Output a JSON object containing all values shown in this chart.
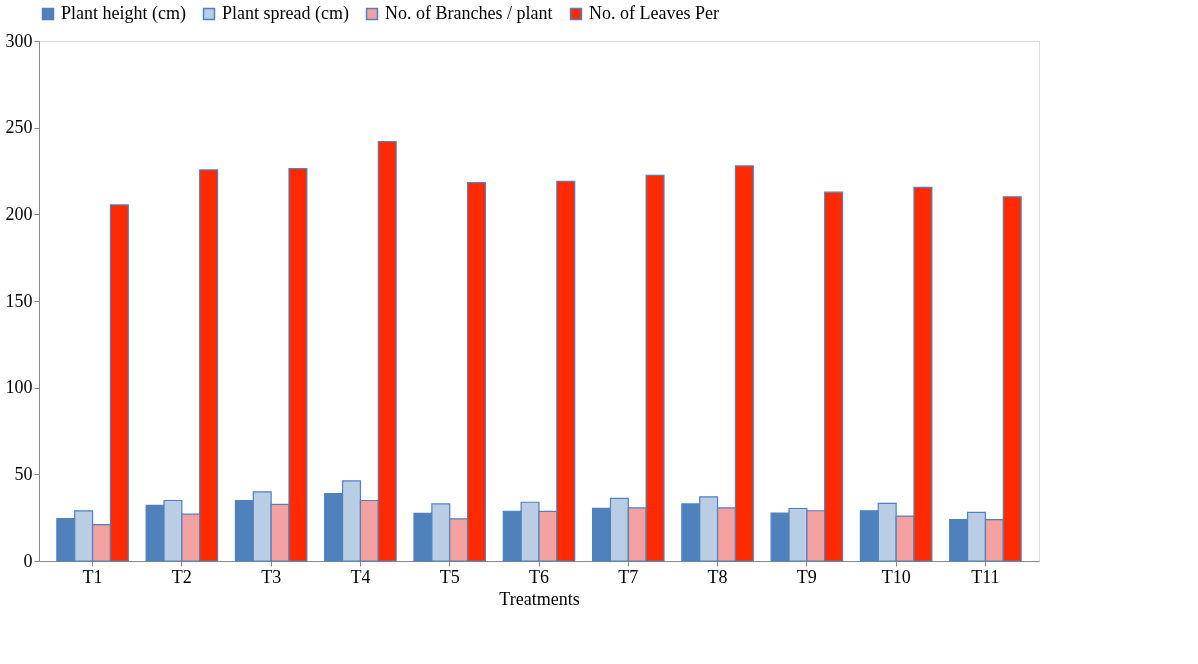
{
  "chart_data": {
    "type": "bar",
    "xlabel": "Treatments",
    "categories": [
      "T1",
      "T2",
      "T3",
      "T4",
      "T5",
      "T6",
      "T7",
      "T8",
      "T9",
      "T10",
      "T11"
    ],
    "series": [
      {
        "name": "Plant height (cm)",
        "color": "#4f81bd",
        "values": [
          24.5,
          32.1,
          34.9,
          38.9,
          27.5,
          28.7,
          30.4,
          32.9,
          27.6,
          29,
          23.9
        ]
      },
      {
        "name": "Plant spread (cm)",
        "color": "#b9cde5",
        "values": [
          28.9,
          34.9,
          39.9,
          46.2,
          32.9,
          33.9,
          36.1,
          37,
          30.3,
          33.3,
          28
        ]
      },
      {
        "name": "No. of Branches / plant",
        "color": "#f2a0a0",
        "values": [
          21,
          27.1,
          32.7,
          34.9,
          24.3,
          28.6,
          30.6,
          30.6,
          29,
          25.9,
          23.9
        ]
      },
      {
        "name": "No. of Leaves Per",
        "color": "#ff2a00",
        "values": [
          205.4,
          225.6,
          226.4,
          241.9,
          218.3,
          219,
          222.5,
          227.9,
          212.8,
          215.6,
          210.1
        ]
      }
    ],
    "ylim": [
      0,
      300
    ],
    "yticks": [
      0,
      50,
      100,
      150,
      200,
      250,
      300
    ],
    "grid": false,
    "legend": "top"
  }
}
